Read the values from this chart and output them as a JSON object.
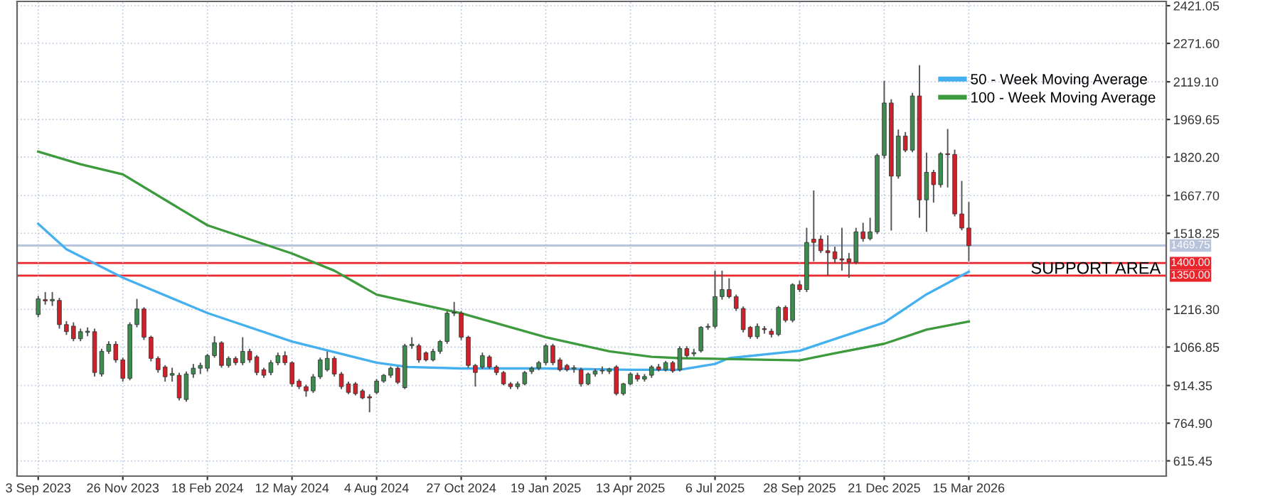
{
  "chart_data": {
    "type": "candlestick",
    "x": [
      "2023-09-03",
      "2023-09-10",
      "2023-09-17",
      "2023-09-24",
      "2023-10-01",
      "2023-10-08",
      "2023-10-15",
      "2023-10-22",
      "2023-10-29",
      "2023-11-05",
      "2023-11-12",
      "2023-11-19",
      "2023-11-26",
      "2023-12-03",
      "2023-12-10",
      "2023-12-17",
      "2023-12-24",
      "2023-12-31",
      "2024-01-07",
      "2024-01-14",
      "2024-01-21",
      "2024-01-28",
      "2024-02-04",
      "2024-02-11",
      "2024-02-18",
      "2024-02-25",
      "2024-03-03",
      "2024-03-10",
      "2024-03-17",
      "2024-03-24",
      "2024-03-31",
      "2024-04-07",
      "2024-04-14",
      "2024-04-21",
      "2024-04-28",
      "2024-05-05",
      "2024-05-12",
      "2024-05-19",
      "2024-05-26",
      "2024-06-02",
      "2024-06-09",
      "2024-06-16",
      "2024-06-23",
      "2024-06-30",
      "2024-07-07",
      "2024-07-14",
      "2024-07-21",
      "2024-07-28",
      "2024-08-04",
      "2024-08-11",
      "2024-08-18",
      "2024-08-25",
      "2024-09-01",
      "2024-09-08",
      "2024-09-15",
      "2024-09-22",
      "2024-09-29",
      "2024-10-06",
      "2024-10-13",
      "2024-10-20",
      "2024-10-27",
      "2024-11-03",
      "2024-11-10",
      "2024-11-17",
      "2024-11-24",
      "2024-12-01",
      "2024-12-08",
      "2024-12-15",
      "2024-12-22",
      "2024-12-29",
      "2025-01-05",
      "2025-01-12",
      "2025-01-19",
      "2025-01-26",
      "2025-02-02",
      "2025-02-09",
      "2025-02-16",
      "2025-02-23",
      "2025-03-02",
      "2025-03-09",
      "2025-03-16",
      "2025-03-23",
      "2025-03-30",
      "2025-04-06",
      "2025-04-13",
      "2025-04-20",
      "2025-04-27",
      "2025-05-04",
      "2025-05-11",
      "2025-05-18",
      "2025-05-25",
      "2025-06-01",
      "2025-06-08",
      "2025-06-15",
      "2025-06-22",
      "2025-06-29",
      "2025-07-06",
      "2025-07-13",
      "2025-07-20",
      "2025-07-27",
      "2025-08-03",
      "2025-08-10",
      "2025-08-17",
      "2025-08-24",
      "2025-08-31",
      "2025-09-07",
      "2025-09-14",
      "2025-09-21",
      "2025-09-28",
      "2025-10-05",
      "2025-10-12",
      "2025-10-19",
      "2025-10-26",
      "2025-11-02",
      "2025-11-09",
      "2025-11-16",
      "2025-11-23",
      "2025-11-30",
      "2025-12-07",
      "2025-12-14",
      "2025-12-21",
      "2025-12-28",
      "2026-01-04",
      "2026-01-11",
      "2026-01-18",
      "2026-01-25",
      "2026-02-01",
      "2026-02-08",
      "2026-02-15",
      "2026-02-22",
      "2026-03-01",
      "2026-03-08",
      "2026-03-15"
    ],
    "ohlc": [
      [
        1196,
        1270,
        1185,
        1258
      ],
      [
        1255,
        1285,
        1235,
        1250
      ],
      [
        1250,
        1285,
        1230,
        1256
      ],
      [
        1252,
        1262,
        1140,
        1156
      ],
      [
        1156,
        1170,
        1115,
        1128
      ],
      [
        1150,
        1165,
        1090,
        1100
      ],
      [
        1100,
        1140,
        1090,
        1128
      ],
      [
        1125,
        1145,
        1110,
        1130
      ],
      [
        1128,
        1140,
        950,
        966
      ],
      [
        960,
        1060,
        950,
        1050
      ],
      [
        1050,
        1090,
        1040,
        1078
      ],
      [
        1078,
        1090,
        1005,
        1016
      ],
      [
        1016,
        1025,
        930,
        943
      ],
      [
        943,
        1165,
        935,
        1156
      ],
      [
        1156,
        1258,
        1145,
        1218
      ],
      [
        1218,
        1225,
        1095,
        1106
      ],
      [
        1106,
        1112,
        1010,
        1022
      ],
      [
        1022,
        1030,
        965,
        977
      ],
      [
        988,
        995,
        930,
        949
      ],
      [
        955,
        985,
        930,
        962
      ],
      [
        955,
        965,
        855,
        865
      ],
      [
        859,
        970,
        850,
        960
      ],
      [
        960,
        1000,
        945,
        983
      ],
      [
        983,
        1005,
        960,
        994
      ],
      [
        983,
        1040,
        970,
        1033
      ],
      [
        1033,
        1110,
        1025,
        1084
      ],
      [
        1084,
        1090,
        985,
        994
      ],
      [
        994,
        1030,
        985,
        1022
      ],
      [
        1022,
        1030,
        995,
        1005
      ],
      [
        1005,
        1106,
        995,
        1050
      ],
      [
        1050,
        1060,
        1005,
        1016
      ],
      [
        1028,
        1035,
        955,
        966
      ],
      [
        977,
        985,
        945,
        955
      ],
      [
        966,
        1015,
        955,
        1005
      ],
      [
        1005,
        1045,
        995,
        1033
      ],
      [
        1033,
        1050,
        995,
        1005
      ],
      [
        1005,
        1010,
        910,
        921
      ],
      [
        932,
        940,
        900,
        910
      ],
      [
        910,
        918,
        870,
        893
      ],
      [
        893,
        960,
        885,
        949
      ],
      [
        949,
        1025,
        940,
        1016
      ],
      [
        977,
        1050,
        970,
        1022
      ],
      [
        1022,
        1030,
        950,
        960
      ],
      [
        960,
        968,
        900,
        910
      ],
      [
        921,
        930,
        880,
        887
      ],
      [
        921,
        928,
        875,
        882
      ],
      [
        893,
        900,
        860,
        865
      ],
      [
        870,
        880,
        808,
        865
      ],
      [
        887,
        940,
        880,
        932
      ],
      [
        932,
        960,
        925,
        955
      ],
      [
        955,
        990,
        945,
        983
      ],
      [
        983,
        990,
        920,
        927
      ],
      [
        906,
        1080,
        900,
        1072
      ],
      [
        1072,
        1106,
        1060,
        1078
      ],
      [
        1072,
        1080,
        1005,
        1016
      ],
      [
        1044,
        1050,
        1010,
        1016
      ],
      [
        1016,
        1060,
        1010,
        1050
      ],
      [
        1050,
        1095,
        1040,
        1089
      ],
      [
        1089,
        1210,
        1080,
        1201
      ],
      [
        1201,
        1246,
        1190,
        1205
      ],
      [
        1201,
        1210,
        1095,
        1106
      ],
      [
        1106,
        1112,
        985,
        994
      ],
      [
        994,
        1000,
        910,
        966
      ],
      [
        988,
        1045,
        980,
        1033
      ],
      [
        1028,
        1035,
        980,
        988
      ],
      [
        988,
        995,
        955,
        966
      ],
      [
        966,
        972,
        915,
        921
      ],
      [
        921,
        928,
        900,
        910
      ],
      [
        910,
        930,
        900,
        921
      ],
      [
        921,
        972,
        915,
        966
      ],
      [
        970,
        990,
        960,
        983
      ],
      [
        983,
        1012,
        975,
        1005
      ],
      [
        1005,
        1080,
        995,
        1072
      ],
      [
        1072,
        1080,
        995,
        1005
      ],
      [
        1016,
        1025,
        970,
        977
      ],
      [
        994,
        1000,
        970,
        977
      ],
      [
        980,
        995,
        965,
        985
      ],
      [
        977,
        985,
        910,
        921
      ],
      [
        921,
        966,
        915,
        960
      ],
      [
        960,
        980,
        950,
        972
      ],
      [
        972,
        990,
        960,
        975
      ],
      [
        970,
        985,
        960,
        980
      ],
      [
        988,
        995,
        875,
        882
      ],
      [
        882,
        925,
        875,
        921
      ],
      [
        921,
        966,
        915,
        960
      ],
      [
        955,
        965,
        930,
        940
      ],
      [
        940,
        960,
        930,
        950
      ],
      [
        955,
        995,
        945,
        988
      ],
      [
        988,
        1000,
        970,
        977
      ],
      [
        977,
        1012,
        970,
        1005
      ],
      [
        1005,
        1012,
        965,
        972
      ],
      [
        977,
        1070,
        970,
        1061
      ],
      [
        1061,
        1070,
        1025,
        1033
      ],
      [
        1040,
        1060,
        1030,
        1045
      ],
      [
        1052,
        1150,
        1045,
        1145
      ],
      [
        1145,
        1160,
        1135,
        1149
      ],
      [
        1149,
        1370,
        1140,
        1267
      ],
      [
        1267,
        1370,
        1255,
        1295
      ],
      [
        1295,
        1340,
        1260,
        1267
      ],
      [
        1267,
        1275,
        1210,
        1220
      ],
      [
        1220,
        1228,
        1125,
        1136
      ],
      [
        1145,
        1150,
        1100,
        1108
      ],
      [
        1108,
        1160,
        1100,
        1149
      ],
      [
        1140,
        1150,
        1120,
        1136
      ],
      [
        1130,
        1140,
        1105,
        1117
      ],
      [
        1117,
        1230,
        1110,
        1224
      ],
      [
        1224,
        1232,
        1165,
        1173
      ],
      [
        1173,
        1320,
        1165,
        1314
      ],
      [
        1314,
        1330,
        1285,
        1295
      ],
      [
        1295,
        1540,
        1285,
        1482
      ],
      [
        1495,
        1688,
        1407,
        1482
      ],
      [
        1495,
        1510,
        1440,
        1449
      ],
      [
        1449,
        1510,
        1351,
        1441
      ],
      [
        1445,
        1465,
        1400,
        1417
      ],
      [
        1417,
        1540,
        1370,
        1412
      ],
      [
        1417,
        1440,
        1342,
        1405
      ],
      [
        1404,
        1540,
        1395,
        1524
      ],
      [
        1524,
        1560,
        1485,
        1497
      ],
      [
        1497,
        1580,
        1490,
        1524
      ],
      [
        1524,
        1835,
        1515,
        1827
      ],
      [
        1827,
        2123,
        1815,
        2035
      ],
      [
        2035,
        2050,
        1529,
        1745
      ],
      [
        1745,
        1930,
        1735,
        1904
      ],
      [
        1904,
        1920,
        1840,
        1848
      ],
      [
        1848,
        2075,
        1840,
        2063
      ],
      [
        2063,
        2185,
        1580,
        1651
      ],
      [
        1651,
        1838,
        1524,
        1760
      ],
      [
        1760,
        1770,
        1640,
        1711
      ],
      [
        1711,
        1840,
        1700,
        1834
      ],
      [
        1834,
        1932,
        1700,
        1830
      ],
      [
        1831,
        1850,
        1585,
        1595
      ],
      [
        1595,
        1726,
        1530,
        1539
      ],
      [
        1539,
        1642,
        1407,
        1469
      ]
    ],
    "series": [
      {
        "name": "50 - Week Moving Average",
        "type": "line",
        "color": "#45b0f0",
        "x": [
          "2023-09-03",
          "2023-10-01",
          "2023-11-26",
          "2024-02-18",
          "2024-05-12",
          "2024-08-04",
          "2024-09-04",
          "2024-10-27",
          "2025-01-19",
          "2025-04-13",
          "2025-06-01",
          "2025-07-06",
          "2025-07-20",
          "2025-09-28",
          "2025-12-21",
          "2026-02-01",
          "2026-03-15"
        ],
        "values": [
          1556,
          1455,
          1342,
          1202,
          1089,
          1005,
          988,
          982,
          982,
          977,
          977,
          1000,
          1023,
          1052,
          1164,
          1276,
          1366
        ]
      },
      {
        "name": "100 - Week Moving Average",
        "type": "line",
        "color": "#3d9a3d",
        "x": [
          "2023-09-03",
          "2023-10-15",
          "2023-11-26",
          "2024-01-14",
          "2024-02-18",
          "2024-05-12",
          "2024-06-23",
          "2024-08-04",
          "2024-10-27",
          "2025-01-19",
          "2025-03-23",
          "2025-05-04",
          "2025-06-01",
          "2025-09-28",
          "2025-11-02",
          "2025-12-21",
          "2026-02-01",
          "2026-03-15"
        ],
        "values": [
          1842,
          1792,
          1752,
          1634,
          1550,
          1438,
          1370,
          1275,
          1201,
          1106,
          1050,
          1028,
          1023,
          1014,
          1042,
          1080,
          1136,
          1168
        ]
      }
    ],
    "xlim": [
      "2023-08-13",
      "2026-09-27"
    ],
    "xticks": [
      {
        "value": "2023-09-03",
        "label": "3 Sep 2023"
      },
      {
        "value": "2023-11-26",
        "label": "26 Nov 2023"
      },
      {
        "value": "2024-02-18",
        "label": "18 Feb 2024"
      },
      {
        "value": "2024-05-12",
        "label": "12 May 2024"
      },
      {
        "value": "2024-08-04",
        "label": "4 Aug 2024"
      },
      {
        "value": "2024-10-27",
        "label": "27 Oct 2024"
      },
      {
        "value": "2025-01-19",
        "label": "19 Jan 2025"
      },
      {
        "value": "2025-04-13",
        "label": "13 Apr 2025"
      },
      {
        "value": "2025-07-06",
        "label": "6 Jul 2025"
      },
      {
        "value": "2025-09-28",
        "label": "28 Sep 2025"
      },
      {
        "value": "2025-12-21",
        "label": "21 Dec 2025"
      },
      {
        "value": "2026-03-15",
        "label": "15 Mar 2026"
      }
    ],
    "ylim": [
      555,
      2438
    ],
    "yticks": [
      {
        "value": 615.45,
        "label": "615.45"
      },
      {
        "value": 764.9,
        "label": "764.90"
      },
      {
        "value": 914.35,
        "label": "914.35"
      },
      {
        "value": 1066.85,
        "label": "1066.85"
      },
      {
        "value": 1216.3,
        "label": "1216.30"
      },
      {
        "value": 1518.25,
        "label": "1518.25"
      },
      {
        "value": 1667.7,
        "label": "1667.70"
      },
      {
        "value": 1820.2,
        "label": "1820.20"
      },
      {
        "value": 1969.65,
        "label": "1969.65"
      },
      {
        "value": 2119.1,
        "label": "2119.10"
      },
      {
        "value": 2271.6,
        "label": "2271.60"
      },
      {
        "value": 2421.05,
        "label": "2421.05"
      }
    ],
    "ref_lines": [
      {
        "axis": "y",
        "value": 1469.75,
        "label": "1469.75",
        "color": "#b8c4dc"
      },
      {
        "axis": "y",
        "value": 1400.0,
        "label": "1400.00",
        "color": "#e8262c"
      },
      {
        "axis": "y",
        "value": 1350.0,
        "label": "1350.00",
        "color": "#e8262c"
      }
    ],
    "annotations": [
      {
        "text": "SUPPORT AREA",
        "x": "2026-07-19",
        "y": 1375
      }
    ],
    "grid": true,
    "legend": "top right"
  }
}
